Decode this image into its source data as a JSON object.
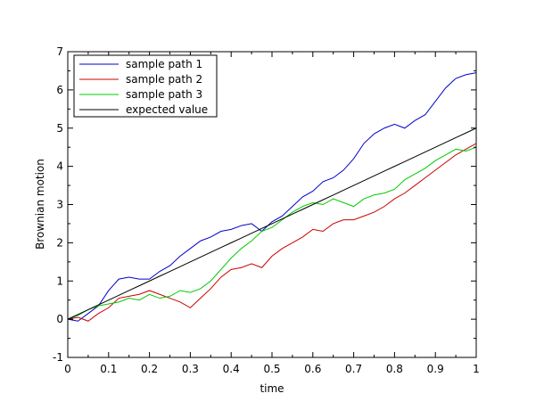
{
  "chart_data": {
    "type": "line",
    "xlabel": "time",
    "ylabel": "Brownian motion",
    "xlim": [
      0,
      1
    ],
    "ylim": [
      -1,
      7
    ],
    "xticks": [
      "0",
      "0.1",
      "0.2",
      "0.3",
      "0.4",
      "0.5",
      "0.6",
      "0.7",
      "0.8",
      "0.9",
      "1"
    ],
    "yticks": [
      "-1",
      "0",
      "1",
      "2",
      "3",
      "4",
      "5",
      "6",
      "7"
    ],
    "grid": false,
    "legend_position": "top-left",
    "x": [
      0,
      0.025,
      0.05,
      0.075,
      0.1,
      0.125,
      0.15,
      0.175,
      0.2,
      0.225,
      0.25,
      0.275,
      0.3,
      0.325,
      0.35,
      0.375,
      0.4,
      0.425,
      0.45,
      0.475,
      0.5,
      0.525,
      0.55,
      0.575,
      0.6,
      0.625,
      0.65,
      0.675,
      0.7,
      0.725,
      0.75,
      0.775,
      0.8,
      0.825,
      0.85,
      0.875,
      0.9,
      0.925,
      0.95,
      0.975,
      1.0
    ],
    "series": [
      {
        "name": "sample path 1",
        "color": "#0000cc",
        "values": [
          0.0,
          -0.05,
          0.15,
          0.35,
          0.75,
          1.05,
          1.1,
          1.05,
          1.05,
          1.25,
          1.4,
          1.65,
          1.85,
          2.05,
          2.15,
          2.3,
          2.35,
          2.45,
          2.5,
          2.3,
          2.55,
          2.7,
          2.95,
          3.2,
          3.35,
          3.6,
          3.7,
          3.9,
          4.2,
          4.6,
          4.85,
          5.0,
          5.1,
          5.0,
          5.2,
          5.35,
          5.7,
          6.05,
          6.3,
          6.4,
          6.45
        ]
      },
      {
        "name": "sample path 2",
        "color": "#cc0000",
        "values": [
          0.0,
          0.05,
          -0.05,
          0.15,
          0.3,
          0.55,
          0.6,
          0.65,
          0.75,
          0.65,
          0.55,
          0.45,
          0.3,
          0.55,
          0.8,
          1.1,
          1.3,
          1.35,
          1.45,
          1.35,
          1.65,
          1.85,
          2.0,
          2.15,
          2.35,
          2.3,
          2.5,
          2.6,
          2.6,
          2.7,
          2.8,
          2.95,
          3.15,
          3.3,
          3.5,
          3.7,
          3.9,
          4.1,
          4.3,
          4.45,
          4.6
        ]
      },
      {
        "name": "sample path 3",
        "color": "#00cc00",
        "values": [
          0.0,
          0.1,
          0.25,
          0.35,
          0.4,
          0.45,
          0.55,
          0.5,
          0.65,
          0.55,
          0.6,
          0.75,
          0.7,
          0.8,
          1.0,
          1.3,
          1.6,
          1.85,
          2.05,
          2.3,
          2.4,
          2.6,
          2.8,
          2.95,
          3.05,
          3.0,
          3.15,
          3.05,
          2.95,
          3.15,
          3.25,
          3.3,
          3.4,
          3.65,
          3.8,
          3.95,
          4.15,
          4.3,
          4.45,
          4.4,
          4.5
        ]
      },
      {
        "name": "expected value",
        "color": "#000000",
        "values": [
          0.0,
          0.125,
          0.25,
          0.375,
          0.5,
          0.625,
          0.75,
          0.875,
          1.0,
          1.125,
          1.25,
          1.375,
          1.5,
          1.625,
          1.75,
          1.875,
          2.0,
          2.125,
          2.25,
          2.375,
          2.5,
          2.625,
          2.75,
          2.875,
          3.0,
          3.125,
          3.25,
          3.375,
          3.5,
          3.625,
          3.75,
          3.875,
          4.0,
          4.125,
          4.25,
          4.375,
          4.5,
          4.625,
          4.75,
          4.875,
          5.0
        ]
      }
    ]
  }
}
